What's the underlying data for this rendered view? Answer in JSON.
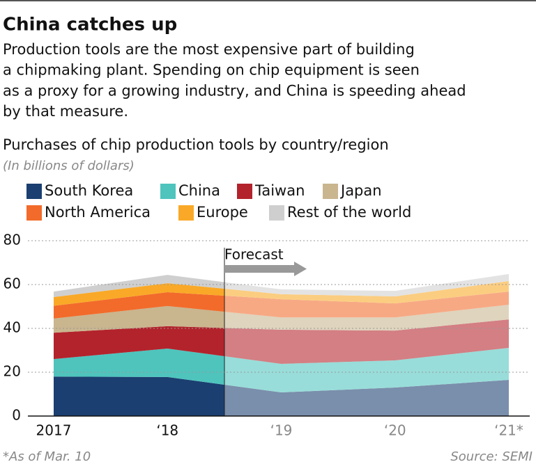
{
  "chart_data": {
    "type": "stacked-area",
    "title": "China catches up",
    "subtitle_lines": [
      "Production tools are the most expensive part of building",
      "a chipmaking plant. Spending on chip equipment is seen",
      "as a proxy for a growing industry, and China is speeding ahead",
      "by that measure."
    ],
    "chart_title": "Purchases of chip production tools by country/region",
    "unit_note": "(In billions of dollars)",
    "annotation": "Forecast",
    "footnote": "*As of Mar. 10",
    "source": "Source: SEMI",
    "categories": [
      "2017",
      "‘18",
      "‘19",
      "‘20",
      "‘21*"
    ],
    "ylim": [
      0,
      80
    ],
    "yticks": [
      0,
      20,
      40,
      60,
      80
    ],
    "grid": true,
    "series": [
      {
        "name": "South Korea",
        "color": "#1b3f70",
        "values": [
          18,
          17.8,
          10.8,
          13,
          16.5
        ]
      },
      {
        "name": "China",
        "color": "#4ec4bd",
        "values": [
          8,
          13,
          13,
          12.4,
          14.6
        ]
      },
      {
        "name": "Taiwan",
        "color": "#b3232c",
        "values": [
          12,
          10.2,
          15.6,
          13.6,
          13
        ]
      },
      {
        "name": "Japan",
        "color": "#c9b58e",
        "values": [
          6.5,
          9.2,
          5.6,
          6,
          6.7
        ]
      },
      {
        "name": "North America",
        "color": "#f26b2b",
        "values": [
          5.8,
          6.3,
          8.3,
          6.4,
          6
        ]
      },
      {
        "name": "Europe",
        "color": "#f9a927",
        "values": [
          4,
          4.1,
          2.3,
          3.2,
          4.8
        ]
      },
      {
        "name": "Rest of the world",
        "color": "#cfcfcf",
        "values": [
          2.5,
          3.8,
          2.2,
          2.5,
          3.2
        ]
      }
    ]
  }
}
